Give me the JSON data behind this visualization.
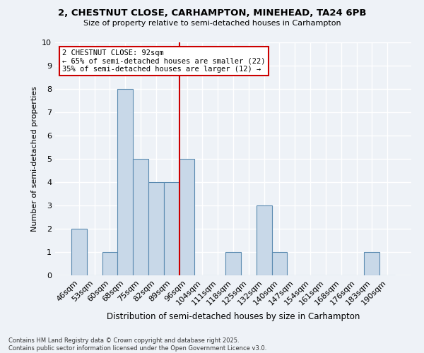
{
  "title": "2, CHESTNUT CLOSE, CARHAMPTON, MINEHEAD, TA24 6PB",
  "subtitle": "Size of property relative to semi-detached houses in Carhampton",
  "xlabel": "Distribution of semi-detached houses by size in Carhampton",
  "ylabel": "Number of semi-detached properties",
  "footnote": "Contains HM Land Registry data © Crown copyright and database right 2025.\nContains public sector information licensed under the Open Government Licence v3.0.",
  "categories": [
    "46sqm",
    "53sqm",
    "60sqm",
    "68sqm",
    "75sqm",
    "82sqm",
    "89sqm",
    "96sqm",
    "104sqm",
    "111sqm",
    "118sqm",
    "125sqm",
    "132sqm",
    "140sqm",
    "147sqm",
    "154sqm",
    "161sqm",
    "168sqm",
    "176sqm",
    "183sqm",
    "190sqm"
  ],
  "values": [
    2,
    0,
    1,
    8,
    5,
    4,
    4,
    5,
    0,
    0,
    1,
    0,
    3,
    1,
    0,
    0,
    0,
    0,
    0,
    1,
    0
  ],
  "bar_color": "#c8d8e8",
  "bar_edge_color": "#5a8ab0",
  "property_line_color": "#cc0000",
  "annotation_title": "2 CHESTNUT CLOSE: 92sqm",
  "annotation_line1": "← 65% of semi-detached houses are smaller (22)",
  "annotation_line2": "35% of semi-detached houses are larger (12) →",
  "annotation_box_color": "#cc0000",
  "background_color": "#eef2f7",
  "grid_color": "#ffffff",
  "ylim": [
    0,
    10
  ],
  "yticks": [
    0,
    1,
    2,
    3,
    4,
    5,
    6,
    7,
    8,
    9,
    10
  ]
}
